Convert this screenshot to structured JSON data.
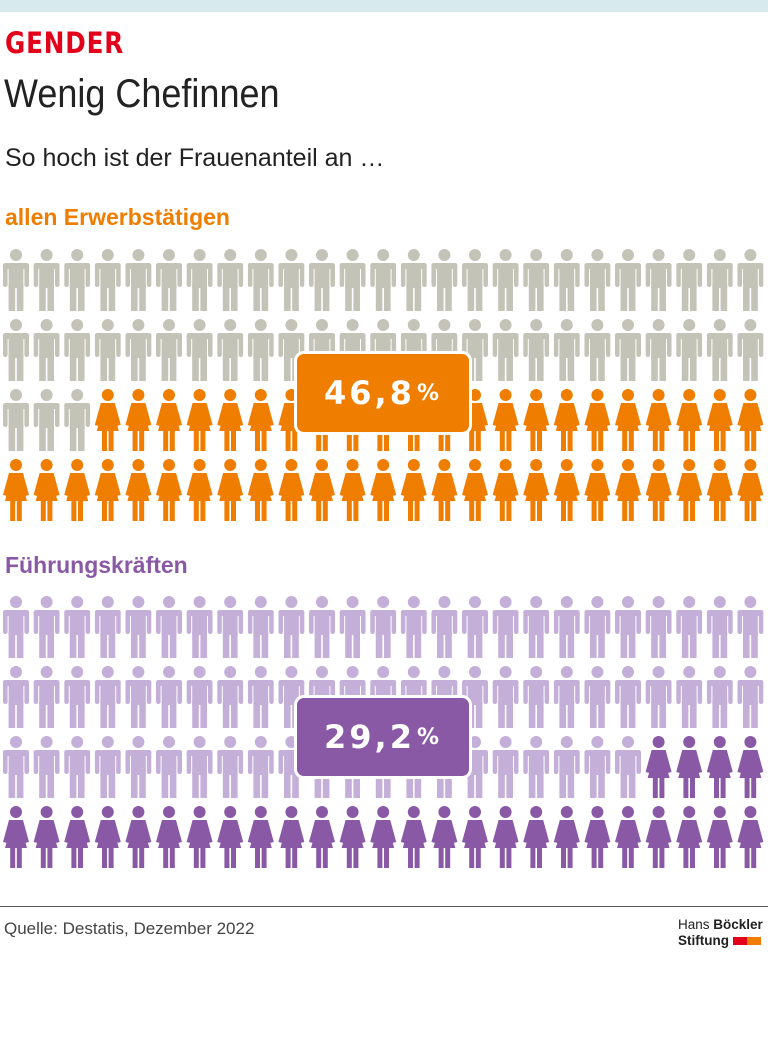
{
  "header": {
    "kicker": "GENDER",
    "title": "Wenig Chefinnen",
    "subtitle": "So hoch ist der Frauenanteil an …"
  },
  "colors": {
    "kicker": "#e3001b",
    "men_1": "#c4c3b8",
    "women_1": "#ef7d00",
    "men_2": "#c4afd8",
    "women_2": "#8a59a6"
  },
  "chart_data": {
    "type": "bar",
    "title": "",
    "categories": [
      "allen Erwerbstätigen",
      "Führungskräften"
    ],
    "values": [
      46.8,
      29.2
    ],
    "labels": [
      "46,8",
      "29,2"
    ],
    "unit": "%",
    "icons": [
      "man-icon",
      "woman-icon"
    ]
  },
  "footer": {
    "source": "Quelle: Destatis, Dezember 2022",
    "logo_line1_a": "Hans",
    "logo_line1_b": "Böckler",
    "logo_line2": "Stiftung"
  }
}
